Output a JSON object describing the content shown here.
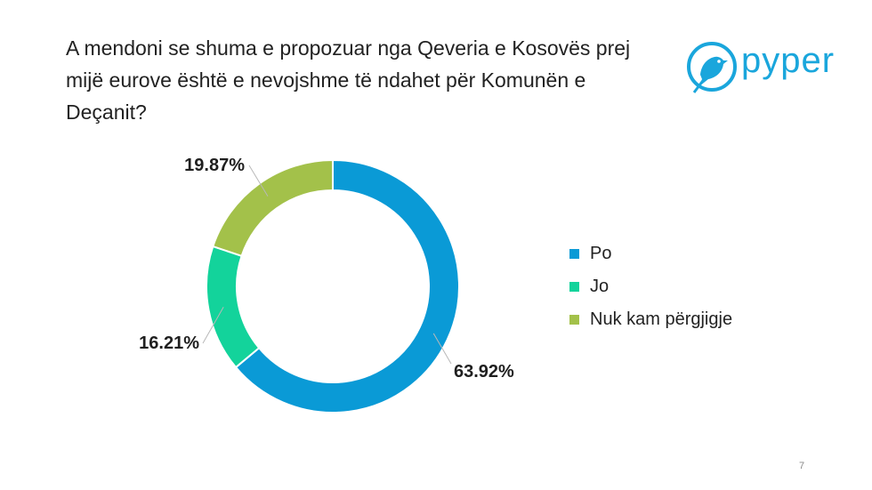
{
  "slide": {
    "title": "A mendoni se shuma e propozuar nga Qeveria e Kosovës prej mijë eurove është e nevojshme të ndahet për Komunën e Deçanit?",
    "page_number": "7"
  },
  "logo": {
    "text": "pyper",
    "icon": "bird-logo-icon",
    "color": "#1aa6dc"
  },
  "chart_data": {
    "type": "pie",
    "variant": "donut",
    "title": "",
    "categories": [
      "Po",
      "Jo",
      "Nuk kam përgjigje"
    ],
    "values": [
      63.92,
      16.21,
      19.87
    ],
    "labels": [
      "63.92%",
      "16.21%",
      "19.87%"
    ],
    "colors": [
      "#0a9ad6",
      "#13d39b",
      "#a3c14a"
    ],
    "legend_position": "right",
    "start_angle": "12 o'clock",
    "direction": "clockwise"
  }
}
